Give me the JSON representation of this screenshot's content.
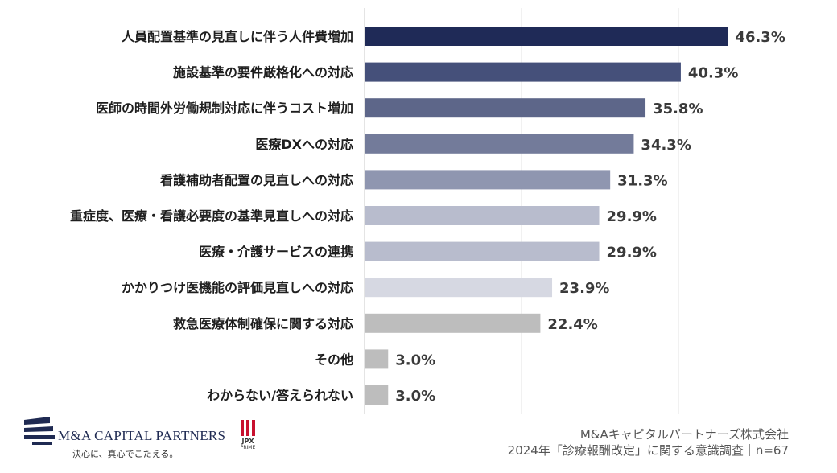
{
  "chart_data": {
    "type": "bar",
    "orientation": "horizontal",
    "categories": [
      "人員配置基準の見直しに伴う人件費増加",
      "施設基準の要件厳格化への対応",
      "医師の時間外労働規制対応に伴うコスト増加",
      "医療DXへの対応",
      "看護補助者配置の見直しへの対応",
      "重症度、医療・看護必要度の基準見直しへの対応",
      "医療・介護サービスの連携",
      "かかりつけ医機能の評価見直しへの対応",
      "救急医療体制確保に関する対応",
      "その他",
      "わからない/答えられない"
    ],
    "values": [
      46.3,
      40.3,
      35.8,
      34.3,
      31.3,
      29.9,
      29.9,
      23.9,
      22.4,
      3.0,
      3.0
    ],
    "value_labels": [
      "46.3%",
      "40.3%",
      "35.8%",
      "34.3%",
      "31.3%",
      "29.9%",
      "29.9%",
      "23.9%",
      "22.4%",
      "3.0%",
      "3.0%"
    ],
    "colors": [
      "#1f2a57",
      "#45507a",
      "#5d6689",
      "#737b9a",
      "#8f96b0",
      "#b8bccd",
      "#b8bccd",
      "#d6d8e2",
      "#bdbdbd",
      "#bdbdbd",
      "#bdbdbd"
    ],
    "xlim": [
      0,
      50
    ],
    "grid": true,
    "legend": "none"
  },
  "footer": {
    "company": "M&Aキャピタルパートナーズ株式会社",
    "survey": "2024年「診療報酬改定」に関する意識調査｜n=67"
  },
  "logo": {
    "name": "M&A CAPITAL PARTNERS",
    "tagline": "決心に、真心でこたえる。"
  },
  "jpx": {
    "text": "JPX",
    "sub": "PRIME"
  }
}
